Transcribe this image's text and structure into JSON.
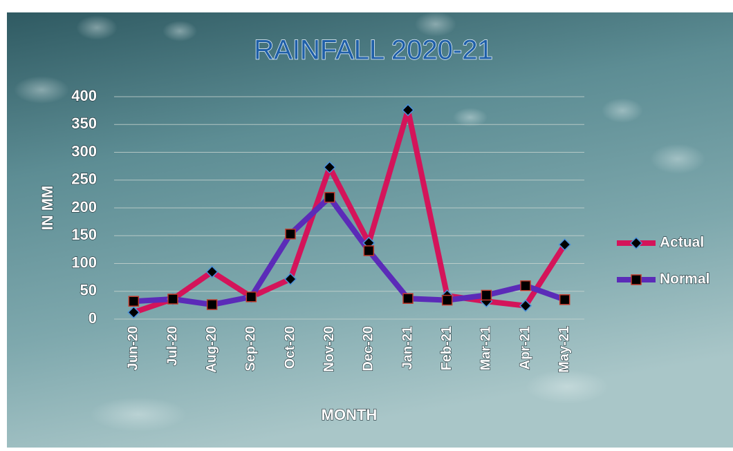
{
  "chart_data": {
    "type": "line",
    "title": "RAINFALL 2020-21",
    "x_label": "MONTH",
    "y_label": "IN MM",
    "categories": [
      "Jun-20",
      "Jul-20",
      "Aug-20",
      "Sep-20",
      "Oct-20",
      "Nov-20",
      "Dec-20",
      "Jan-21",
      "Feb-21",
      "Mar-21",
      "Apr-21",
      "May-21"
    ],
    "series": [
      {
        "name": "Actual",
        "color": "#d4145a",
        "values": [
          12,
          36,
          85,
          40,
          72,
          273,
          137,
          376,
          42,
          32,
          24,
          134
        ]
      },
      {
        "name": "Normal",
        "color": "#5b2bb8",
        "values": [
          32,
          36,
          26,
          40,
          153,
          219,
          123,
          37,
          34,
          43,
          60,
          35
        ]
      }
    ],
    "ylim": [
      0,
      400
    ],
    "yticks": [
      0,
      50,
      100,
      150,
      200,
      250,
      300,
      350,
      400
    ],
    "grid": true,
    "legend": "right"
  }
}
